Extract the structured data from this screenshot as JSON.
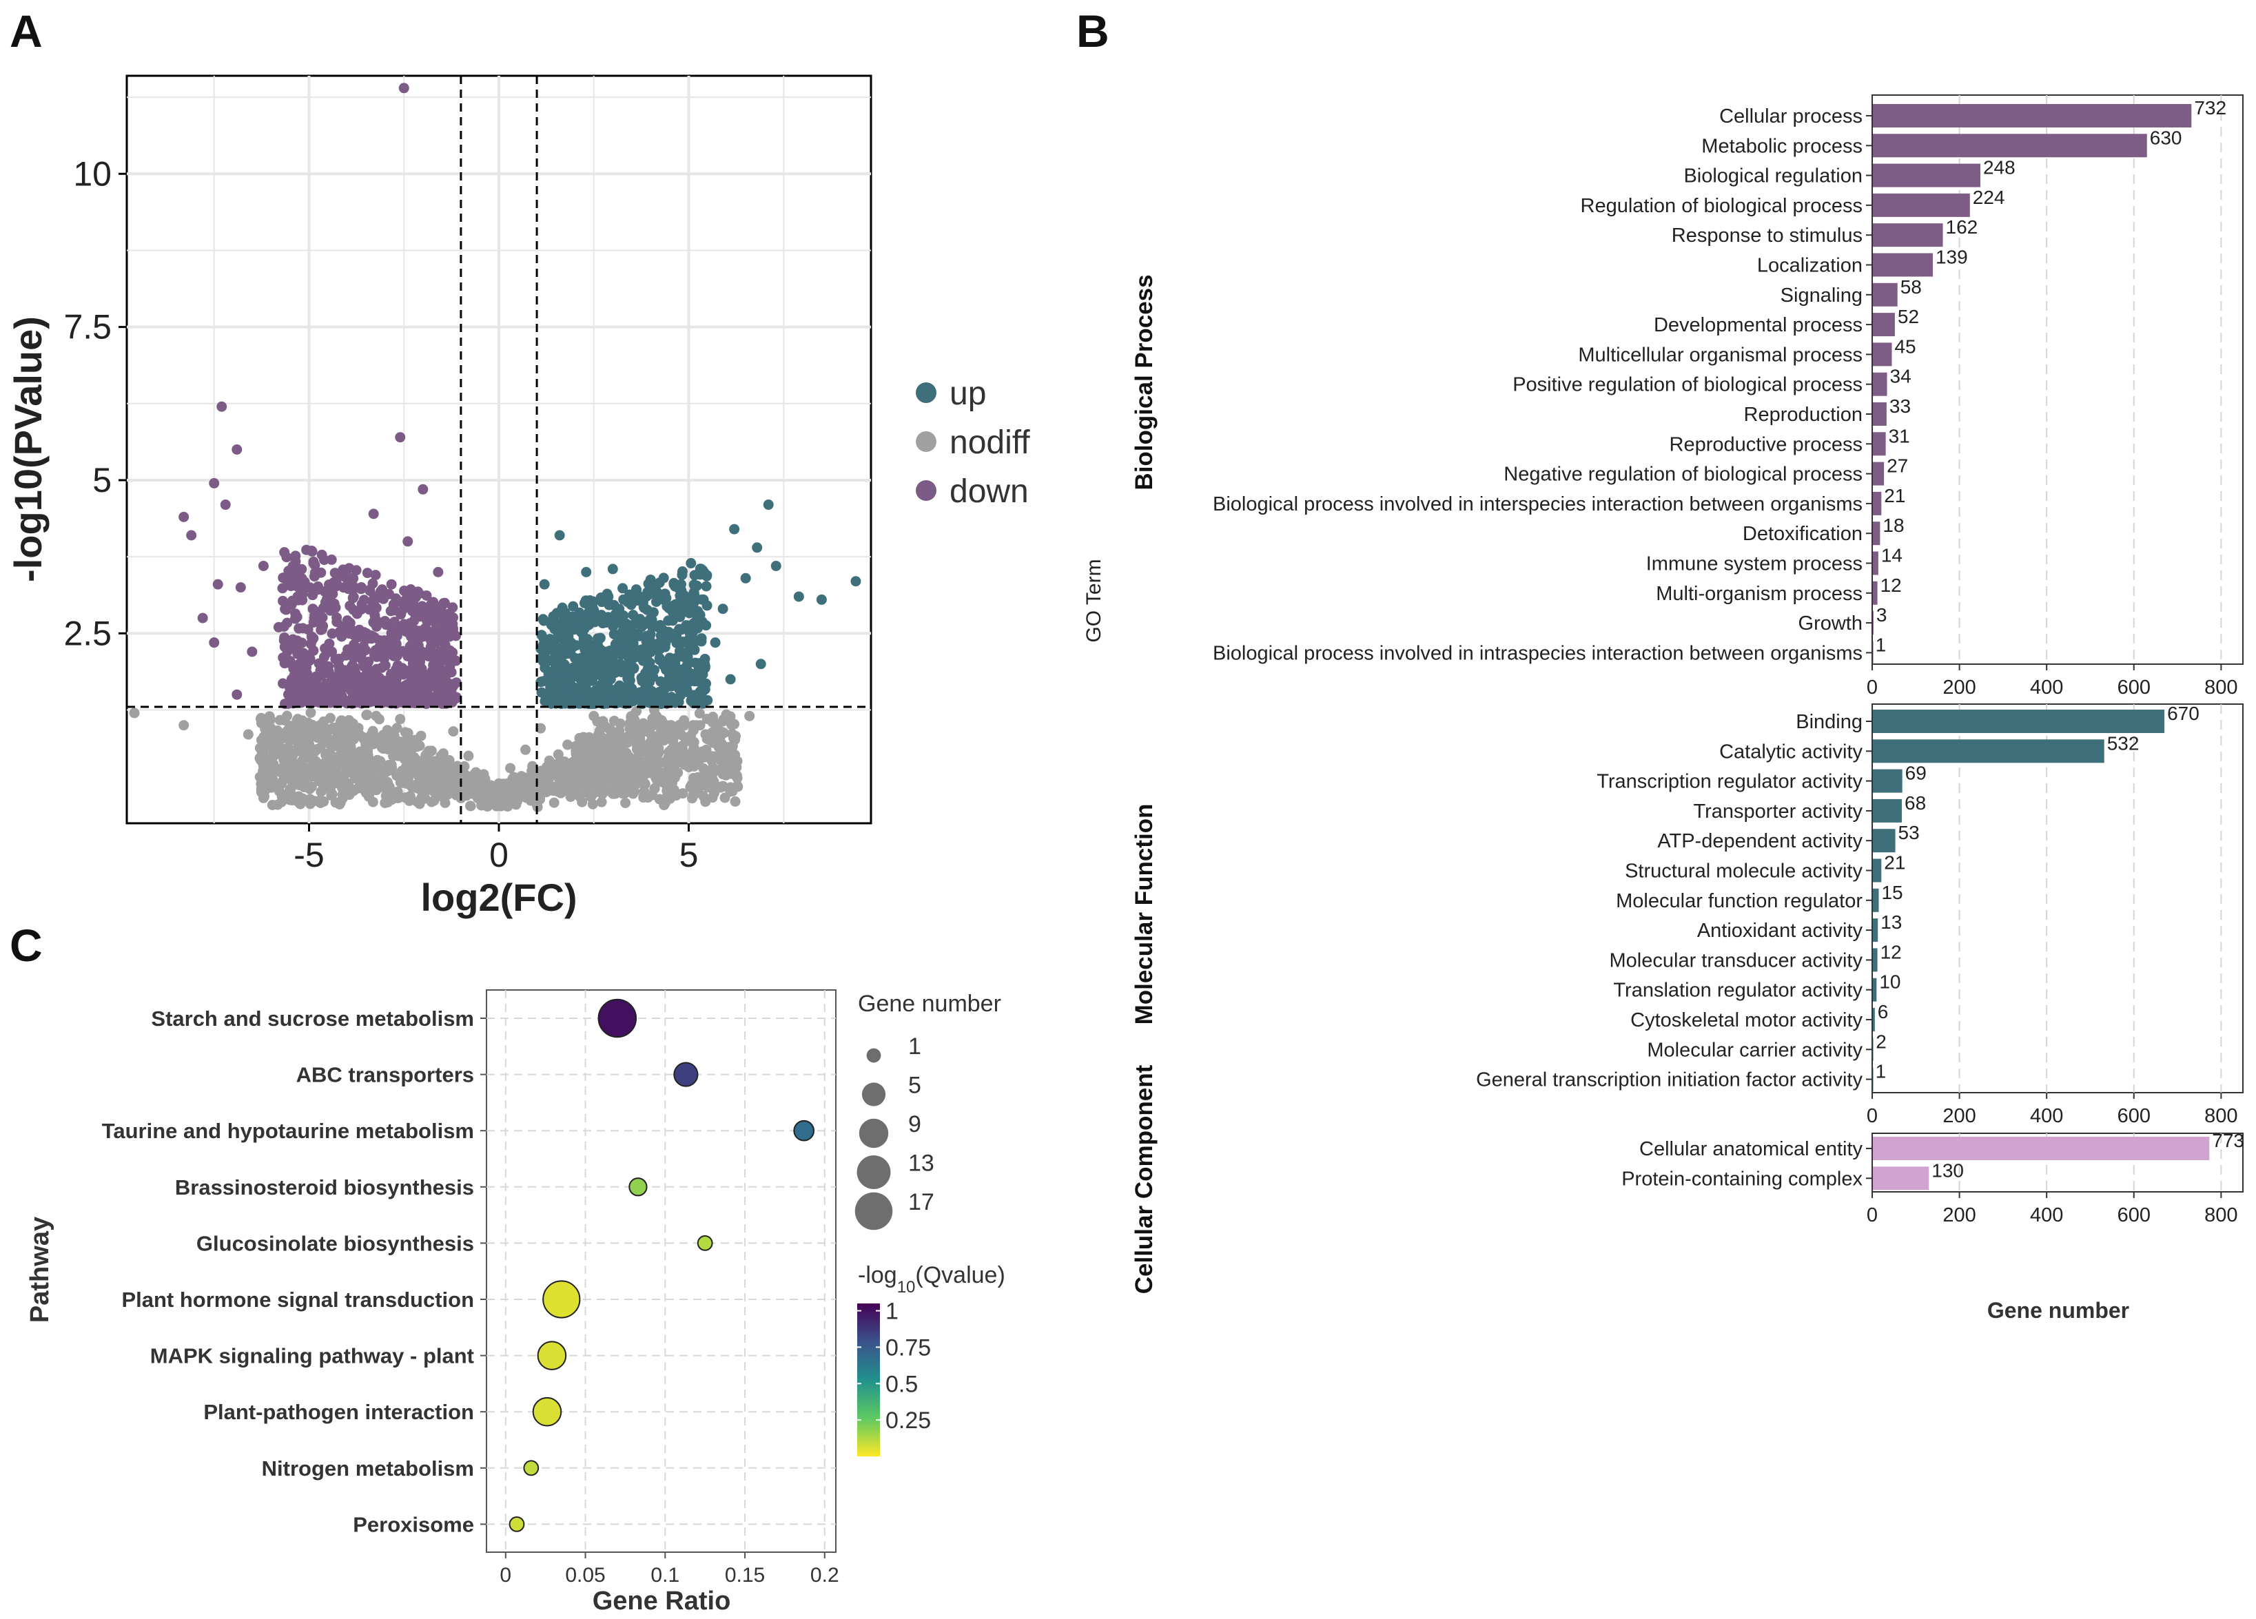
{
  "panels": {
    "a": "A",
    "b": "B",
    "c": "C"
  },
  "colors": {
    "up": "#3F6F7B",
    "nodiff": "#A0A0A0",
    "down": "#7D5B87",
    "bp": "#7D5C86",
    "mf": "#3F6F7B",
    "cc": "#D1A3D0"
  },
  "chart_data": [
    {
      "type": "scatter",
      "id": "volcano",
      "xlabel": "log2(FC)",
      "ylabel": "-log10(PValue)",
      "xlim": [
        -9.8,
        9.8
      ],
      "ylim": [
        -0.6,
        11.6
      ],
      "x_ticks": [
        "-5",
        "0",
        "5"
      ],
      "y_ticks": [
        "2.5",
        "5",
        "7.5",
        "10"
      ],
      "thresholds": {
        "fc": [
          -1,
          1
        ],
        "pvalue": 1.3
      },
      "legend": [
        {
          "key": "up",
          "label": "up"
        },
        {
          "key": "nodiff",
          "label": "nodiff"
        },
        {
          "key": "down",
          "label": "down"
        }
      ],
      "points": [
        {
          "x": -2.5,
          "y": 11.4,
          "g": "down"
        },
        {
          "x": -7.3,
          "y": 6.2,
          "g": "down"
        },
        {
          "x": -6.9,
          "y": 5.5,
          "g": "down"
        },
        {
          "x": -2.6,
          "y": 5.7,
          "g": "down"
        },
        {
          "x": -7.5,
          "y": 4.95,
          "g": "down"
        },
        {
          "x": -2.0,
          "y": 4.85,
          "g": "down"
        },
        {
          "x": -7.2,
          "y": 4.6,
          "g": "down"
        },
        {
          "x": -8.3,
          "y": 4.4,
          "g": "down"
        },
        {
          "x": -8.1,
          "y": 4.1,
          "g": "down"
        },
        {
          "x": -3.3,
          "y": 4.45,
          "g": "down"
        },
        {
          "x": -4.6,
          "y": 3.7,
          "g": "down"
        },
        {
          "x": -6.2,
          "y": 3.6,
          "g": "down"
        },
        {
          "x": -2.4,
          "y": 4.0,
          "g": "down"
        },
        {
          "x": -7.4,
          "y": 3.3,
          "g": "down"
        },
        {
          "x": -5.3,
          "y": 3.1,
          "g": "down"
        },
        {
          "x": -6.8,
          "y": 3.25,
          "g": "down"
        },
        {
          "x": -7.8,
          "y": 2.75,
          "g": "down"
        },
        {
          "x": -7.5,
          "y": 2.35,
          "g": "down"
        },
        {
          "x": -6.5,
          "y": 2.2,
          "g": "down"
        },
        {
          "x": -6.9,
          "y": 1.5,
          "g": "down"
        },
        {
          "x": -5.5,
          "y": 1.6,
          "g": "down"
        },
        {
          "x": -4.2,
          "y": 1.9,
          "g": "down"
        },
        {
          "x": -3.6,
          "y": 1.55,
          "g": "down"
        },
        {
          "x": -2.7,
          "y": 1.75,
          "g": "down"
        },
        {
          "x": -1.5,
          "y": 1.85,
          "g": "down"
        },
        {
          "x": -5.8,
          "y": 2.6,
          "g": "down"
        },
        {
          "x": -4.9,
          "y": 2.9,
          "g": "down"
        },
        {
          "x": -3.9,
          "y": 3.4,
          "g": "down"
        },
        {
          "x": -3.0,
          "y": 2.7,
          "g": "down"
        },
        {
          "x": -1.8,
          "y": 2.4,
          "g": "down"
        },
        {
          "x": -1.3,
          "y": 2.1,
          "g": "down"
        },
        {
          "x": -4.4,
          "y": 2.2,
          "g": "down"
        },
        {
          "x": -5.2,
          "y": 1.9,
          "g": "down"
        },
        {
          "x": -2.2,
          "y": 3.1,
          "g": "down"
        },
        {
          "x": -1.6,
          "y": 3.5,
          "g": "down"
        },
        {
          "x": 1.6,
          "y": 4.1,
          "g": "up"
        },
        {
          "x": 2.3,
          "y": 3.5,
          "g": "up"
        },
        {
          "x": 3.0,
          "y": 3.55,
          "g": "up"
        },
        {
          "x": 1.2,
          "y": 3.3,
          "g": "up"
        },
        {
          "x": 7.1,
          "y": 4.6,
          "g": "up"
        },
        {
          "x": 6.2,
          "y": 4.2,
          "g": "up"
        },
        {
          "x": 7.3,
          "y": 3.6,
          "g": "up"
        },
        {
          "x": 9.4,
          "y": 3.35,
          "g": "up"
        },
        {
          "x": 7.9,
          "y": 3.1,
          "g": "up"
        },
        {
          "x": 8.5,
          "y": 3.05,
          "g": "up"
        },
        {
          "x": 6.8,
          "y": 3.9,
          "g": "up"
        },
        {
          "x": 5.4,
          "y": 3.5,
          "g": "up"
        },
        {
          "x": 4.8,
          "y": 3.3,
          "g": "up"
        },
        {
          "x": 6.5,
          "y": 3.4,
          "g": "up"
        },
        {
          "x": 5.9,
          "y": 2.9,
          "g": "up"
        },
        {
          "x": 4.2,
          "y": 2.6,
          "g": "up"
        },
        {
          "x": 6.9,
          "y": 2.0,
          "g": "up"
        },
        {
          "x": 6.1,
          "y": 1.75,
          "g": "up"
        },
        {
          "x": 5.3,
          "y": 1.55,
          "g": "up"
        },
        {
          "x": 3.5,
          "y": 1.6,
          "g": "up"
        },
        {
          "x": 2.1,
          "y": 1.8,
          "g": "up"
        },
        {
          "x": 1.4,
          "y": 2.3,
          "g": "up"
        },
        {
          "x": 2.7,
          "y": 2.8,
          "g": "up"
        },
        {
          "x": 3.8,
          "y": 3.0,
          "g": "up"
        },
        {
          "x": 4.5,
          "y": 2.1,
          "g": "up"
        },
        {
          "x": 1.8,
          "y": 2.7,
          "g": "up"
        },
        {
          "x": 5.7,
          "y": 2.35,
          "g": "up"
        },
        {
          "x": 3.2,
          "y": 2.0,
          "g": "up"
        },
        {
          "x": -9.6,
          "y": 1.2,
          "g": "nodiff"
        },
        {
          "x": -8.3,
          "y": 1.0,
          "g": "nodiff"
        },
        {
          "x": -6.6,
          "y": 0.85,
          "g": "nodiff"
        },
        {
          "x": -6.0,
          "y": 0.3,
          "g": "nodiff"
        },
        {
          "x": -5.7,
          "y": 0.25,
          "g": "nodiff"
        },
        {
          "x": -4.5,
          "y": 0.2,
          "g": "nodiff"
        },
        {
          "x": -3.8,
          "y": 0.5,
          "g": "nodiff"
        },
        {
          "x": -4.2,
          "y": 0.05,
          "g": "nodiff"
        },
        {
          "x": -3.5,
          "y": -0.1,
          "g": "nodiff"
        },
        {
          "x": -2.9,
          "y": 0.35,
          "g": "nodiff"
        },
        {
          "x": -2.3,
          "y": 0.6,
          "g": "nodiff"
        },
        {
          "x": -1.7,
          "y": 0.2,
          "g": "nodiff"
        },
        {
          "x": -1.2,
          "y": 0.9,
          "g": "nodiff"
        },
        {
          "x": -0.8,
          "y": 0.5,
          "g": "nodiff"
        },
        {
          "x": -0.4,
          "y": 0.2,
          "g": "nodiff"
        },
        {
          "x": 0.0,
          "y": 0.05,
          "g": "nodiff"
        },
        {
          "x": 0.3,
          "y": 0.3,
          "g": "nodiff"
        },
        {
          "x": 0.7,
          "y": 0.6,
          "g": "nodiff"
        },
        {
          "x": 1.1,
          "y": 0.95,
          "g": "nodiff"
        },
        {
          "x": 1.6,
          "y": 0.4,
          "g": "nodiff"
        },
        {
          "x": 2.2,
          "y": 0.7,
          "g": "nodiff"
        },
        {
          "x": 2.8,
          "y": 0.2,
          "g": "nodiff"
        },
        {
          "x": 3.4,
          "y": 0.1,
          "g": "nodiff"
        },
        {
          "x": 4.0,
          "y": 0.25,
          "g": "nodiff"
        },
        {
          "x": 4.6,
          "y": 0.6,
          "g": "nodiff"
        },
        {
          "x": 5.3,
          "y": 1.0,
          "g": "nodiff"
        },
        {
          "x": 5.9,
          "y": 0.2,
          "g": "nodiff"
        },
        {
          "x": 6.2,
          "y": 0.25,
          "g": "nodiff"
        },
        {
          "x": 5.5,
          "y": 0.0,
          "g": "nodiff"
        },
        {
          "x": 6.6,
          "y": 1.15,
          "g": "nodiff"
        },
        {
          "x": -5.0,
          "y": 0.7,
          "g": "nodiff"
        },
        {
          "x": -2.6,
          "y": 1.1,
          "g": "nodiff"
        },
        {
          "x": 2.5,
          "y": 1.15,
          "g": "nodiff"
        },
        {
          "x": -1.9,
          "y": -0.05,
          "g": "nodiff"
        },
        {
          "x": 1.9,
          "y": -0.05,
          "g": "nodiff"
        }
      ]
    },
    {
      "type": "bar",
      "id": "go-bp",
      "orientation": "horizontal",
      "group": "Biological Process",
      "xlim": [
        0,
        850
      ],
      "x_ticks": [
        0,
        200,
        400,
        600,
        800
      ],
      "categories": [
        "Cellular process",
        "Metabolic process",
        "Biological regulation",
        "Regulation of biological process",
        "Response to stimulus",
        "Localization",
        "Signaling",
        "Developmental process",
        "Multicellular organismal process",
        "Positive regulation of biological process",
        "Reproduction",
        "Reproductive process",
        "Negative regulation of biological process",
        "Biological process involved in interspecies interaction between organisms",
        "Detoxification",
        "Immune system process",
        "Multi-organism process",
        "Growth",
        "Biological process involved in intraspecies interaction between organisms"
      ],
      "values": [
        732,
        630,
        248,
        224,
        162,
        139,
        58,
        52,
        45,
        34,
        33,
        31,
        27,
        21,
        18,
        14,
        12,
        3,
        1
      ]
    },
    {
      "type": "bar",
      "id": "go-mf",
      "orientation": "horizontal",
      "group": "Molecular Function",
      "xlim": [
        0,
        850
      ],
      "x_ticks": [
        0,
        200,
        400,
        600,
        800
      ],
      "categories": [
        "Binding",
        "Catalytic activity",
        "Transcription regulator activity",
        "Transporter activity",
        "ATP-dependent activity",
        "Structural molecule activity",
        "Molecular function regulator",
        "Antioxidant activity",
        "Molecular transducer activity",
        "Translation regulator activity",
        "Cytoskeletal motor activity",
        "Molecular carrier activity",
        "General transcription initiation factor activity"
      ],
      "values": [
        670,
        532,
        69,
        68,
        53,
        21,
        15,
        13,
        12,
        10,
        6,
        2,
        1
      ]
    },
    {
      "type": "bar",
      "id": "go-cc",
      "orientation": "horizontal",
      "group": "Cellular Component",
      "xlim": [
        0,
        850
      ],
      "x_ticks": [
        0,
        200,
        400,
        600,
        800
      ],
      "categories": [
        "Cellular anatomical entity",
        "Protein-containing complex"
      ],
      "values": [
        773,
        130
      ]
    },
    {
      "type": "scatter",
      "id": "kegg-bubble",
      "xlabel": "Gene Ratio",
      "ylabel": "Pathway",
      "xlim": [
        -0.012,
        0.207
      ],
      "x_ticks": [
        "0",
        "0.05",
        "0.1",
        "0.15",
        "0.2"
      ],
      "x_tick_values": [
        0,
        0.05,
        0.1,
        0.15,
        0.2
      ],
      "size_legend_title": "Gene number",
      "size_legend": [
        1,
        5,
        9,
        13,
        17
      ],
      "color_legend_title_prefix": "-log",
      "color_legend_title_sub": "10",
      "color_legend_title_suffix": "(Qvalue)",
      "color_ticks": [
        "1",
        "0.75",
        "0.5",
        "0.25"
      ],
      "color_tick_values": [
        1,
        0.75,
        0.5,
        0.25
      ],
      "color_range": [
        0.0,
        1.05
      ],
      "pathways": [
        {
          "name": "Starch and sucrose metabolism",
          "ratio": 0.07,
          "count": 17,
          "q": 1.0
        },
        {
          "name": "ABC transporters",
          "ratio": 0.113,
          "count": 5,
          "q": 0.85
        },
        {
          "name": "Taurine and hypotaurine metabolism",
          "ratio": 0.187,
          "count": 3,
          "q": 0.68
        },
        {
          "name": "Brassinosteroid biosynthesis",
          "ratio": 0.083,
          "count": 2,
          "q": 0.18
        },
        {
          "name": "Glucosinolate biosynthesis",
          "ratio": 0.125,
          "count": 1,
          "q": 0.12
        },
        {
          "name": "Plant hormone signal transduction",
          "ratio": 0.035,
          "count": 16,
          "q": 0.05
        },
        {
          "name": "MAPK signaling pathway - plant",
          "ratio": 0.029,
          "count": 8,
          "q": 0.06
        },
        {
          "name": "Plant-pathogen interaction",
          "ratio": 0.026,
          "count": 8,
          "q": 0.06
        },
        {
          "name": "Nitrogen metabolism",
          "ratio": 0.016,
          "count": 1,
          "q": 0.1
        },
        {
          "name": "Peroxisome",
          "ratio": 0.007,
          "count": 1,
          "q": 0.08
        }
      ]
    }
  ],
  "panel_b": {
    "go_term_label": "GO Term",
    "x_title": "Gene number"
  }
}
